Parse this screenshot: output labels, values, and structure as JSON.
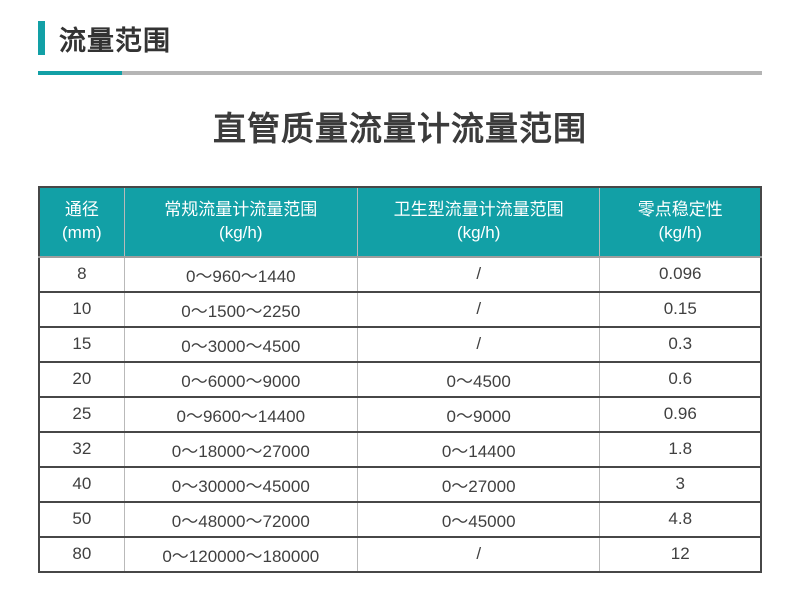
{
  "section": {
    "title": "流量范围",
    "table_title": "直管质量流量计流量范围"
  },
  "colors": {
    "accent_teal": "#12a0a6",
    "divider_gray": "#b5b5b5",
    "table_dark_line": "#474747",
    "table_light_line": "#b9b9b9",
    "header_text": "#ffffff",
    "body_text": "#404040"
  },
  "table": {
    "columns": [
      {
        "title": "通径",
        "unit": "(mm)"
      },
      {
        "title": "常规流量计流量范围",
        "unit": "(kg/h)"
      },
      {
        "title": "卫生型流量计流量范围",
        "unit": "(kg/h)"
      },
      {
        "title": "零点稳定性",
        "unit": "(kg/h)"
      }
    ],
    "col_widths": [
      "11.8%",
      "32.3%",
      "33.6%",
      "22.3%"
    ],
    "rows": [
      [
        "8",
        "0～960～1440",
        "/",
        "0.096"
      ],
      [
        "10",
        "0～1500～2250",
        "/",
        "0.15"
      ],
      [
        "15",
        "0～3000～4500",
        "/",
        "0.3"
      ],
      [
        "20",
        "0～6000～9000",
        "0～4500",
        "0.6"
      ],
      [
        "25",
        "0～9600～14400",
        "0～9000",
        "0.96"
      ],
      [
        "32",
        "0～18000～27000",
        "0～14400",
        "1.8"
      ],
      [
        "40",
        "0～30000～45000",
        "0～27000",
        "3"
      ],
      [
        "50",
        "0～48000～72000",
        "0～45000",
        "4.8"
      ],
      [
        "80",
        "0～120000～180000",
        "/",
        "12"
      ]
    ]
  }
}
